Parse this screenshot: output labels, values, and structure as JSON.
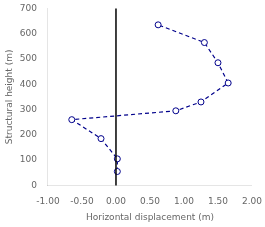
{
  "chart_data": {
    "type": "line",
    "xlabel": "Horizontal displacement (m)",
    "ylabel": "Structural height (m)",
    "x": [
      0.02,
      0.02,
      -0.22,
      -0.65,
      0.88,
      1.25,
      1.65,
      1.5,
      1.3,
      0.62
    ],
    "series": [
      {
        "values": [
          55,
          105,
          185,
          260,
          295,
          330,
          405,
          485,
          565,
          635
        ],
        "color": "#00008B",
        "marker": "circle",
        "line_style": "dashed"
      },
      {
        "x": [
          0.02
        ],
        "values": [
          105
        ],
        "color": "#00008B",
        "marker": "square",
        "line_style": "none"
      }
    ],
    "vlines": [
      {
        "x": 0.0,
        "color": "#000000"
      }
    ],
    "xlim": [
      -1.0,
      2.0
    ],
    "ylim": [
      0,
      700
    ],
    "xticks": [
      {
        "value": -1.0,
        "label": "-1.00"
      },
      {
        "value": -0.5,
        "label": "-0.50"
      },
      {
        "value": 0.0,
        "label": "0.00"
      },
      {
        "value": 0.5,
        "label": "0.50"
      },
      {
        "value": 1.0,
        "label": "1.00"
      },
      {
        "value": 1.5,
        "label": "1.50"
      },
      {
        "value": 2.0,
        "label": "2.00"
      }
    ],
    "yticks": [
      0,
      100,
      200,
      300,
      400,
      500,
      600,
      700
    ],
    "grid": false
  }
}
